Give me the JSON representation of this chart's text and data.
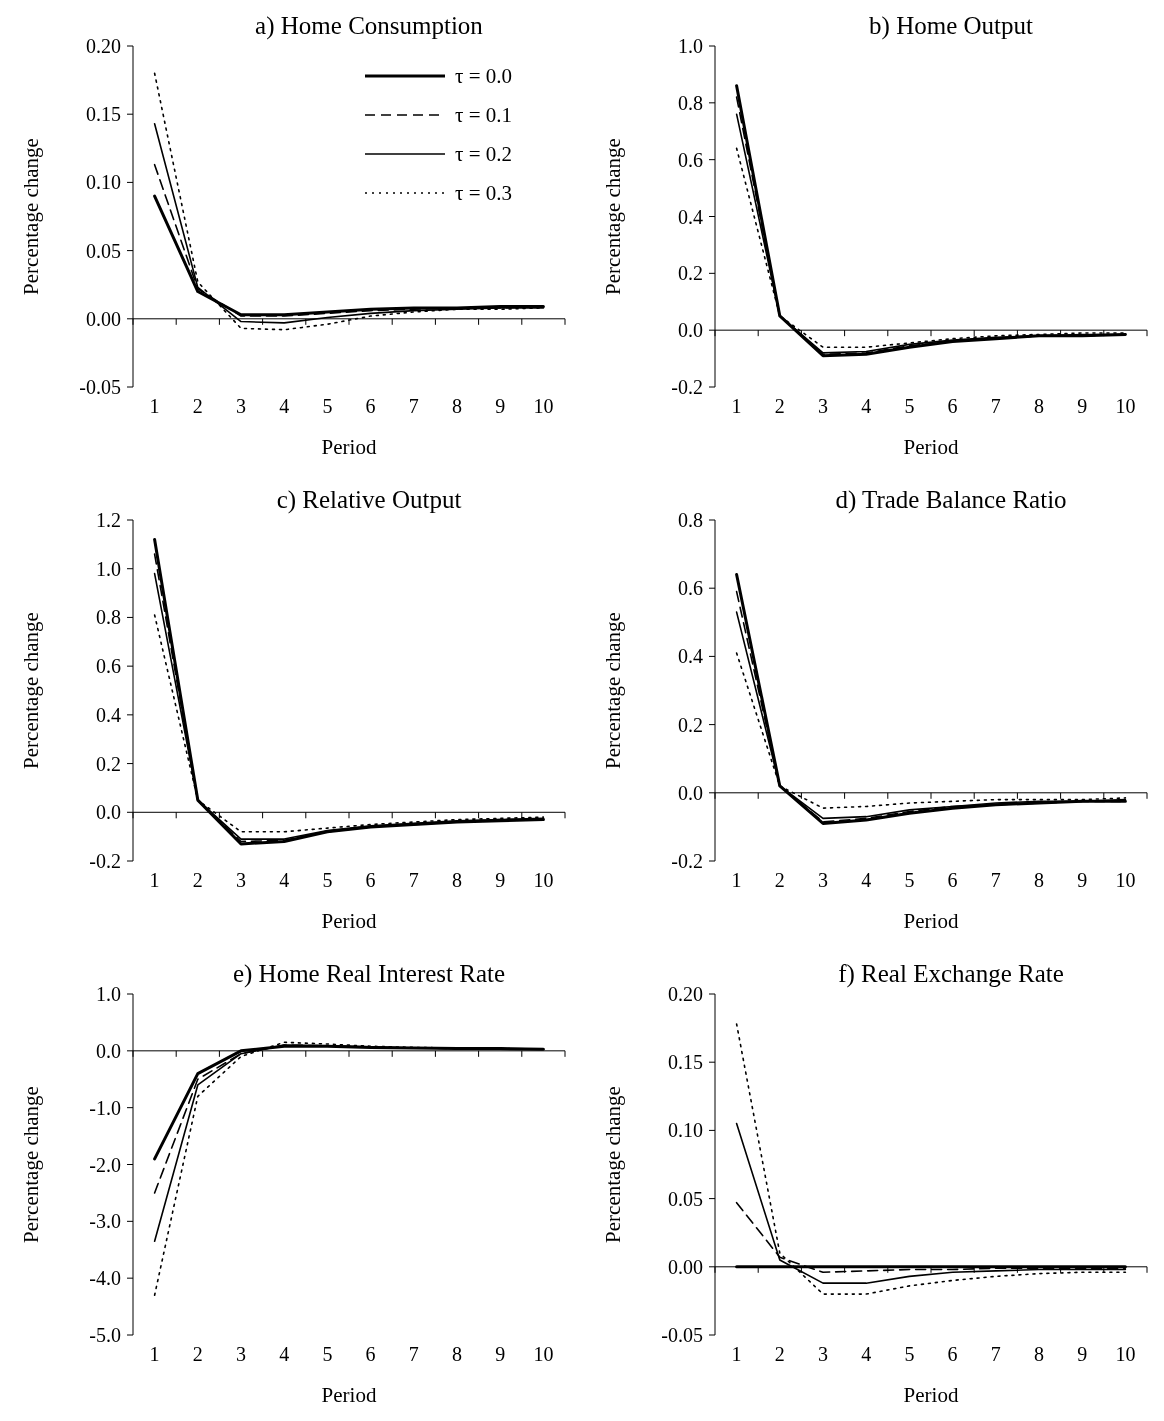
{
  "chart_data": [
    {
      "type": "line",
      "title": "a) Home Consumption",
      "xlabel": "Period",
      "ylabel": "Percentage change",
      "categories": [
        "1",
        "2",
        "3",
        "4",
        "5",
        "6",
        "7",
        "8",
        "9",
        "10"
      ],
      "ylim": [
        -0.05,
        0.2
      ],
      "yticks": [
        {
          "value": -0.05,
          "label": "-0.05"
        },
        {
          "value": 0,
          "label": "0.00"
        },
        {
          "value": 0.05,
          "label": "0.05"
        },
        {
          "value": 0.1,
          "label": "0.10"
        },
        {
          "value": 0.15,
          "label": "0.15"
        },
        {
          "value": 0.2,
          "label": "0.20"
        }
      ],
      "legend": "top right",
      "marker": "none",
      "series": [
        {
          "name": "τ = 0.0",
          "color": "#000000",
          "line_style": "solid",
          "values": [
            0.09,
            0.02,
            0.003,
            0.003,
            0.005,
            0.007,
            0.008,
            0.008,
            0.009,
            0.009
          ]
        },
        {
          "name": "τ = 0.1",
          "color": "#000000",
          "line_style": "dashed",
          "values": [
            0.113,
            0.022,
            0.002,
            0.002,
            0.004,
            0.006,
            0.007,
            0.008,
            0.008,
            0.009
          ]
        },
        {
          "name": "τ = 0.2",
          "color": "#000000",
          "line_style": "solid",
          "values": [
            0.143,
            0.023,
            -0.002,
            -0.003,
            0.001,
            0.004,
            0.006,
            0.007,
            0.008,
            0.008
          ]
        },
        {
          "name": "τ = 0.3",
          "color": "#000000",
          "line_style": "dotted",
          "values": [
            0.18,
            0.027,
            -0.007,
            -0.008,
            -0.004,
            0.002,
            0.005,
            0.007,
            0.007,
            0.008
          ]
        }
      ]
    },
    {
      "type": "line",
      "title": "b) Home Output",
      "xlabel": "Period",
      "ylabel": "Percentage change",
      "categories": [
        "1",
        "2",
        "3",
        "4",
        "5",
        "6",
        "7",
        "8",
        "9",
        "10"
      ],
      "ylim": [
        -0.2,
        1.0
      ],
      "yticks": [
        {
          "value": -0.2,
          "label": "-0.2"
        },
        {
          "value": 0,
          "label": "0.0"
        },
        {
          "value": 0.2,
          "label": "0.2"
        },
        {
          "value": 0.4,
          "label": "0.4"
        },
        {
          "value": 0.6,
          "label": "0.6"
        },
        {
          "value": 0.8,
          "label": "0.8"
        },
        {
          "value": 1.0,
          "label": "1.0"
        }
      ],
      "marker": "none",
      "series": [
        {
          "color": "#000000",
          "line_style": "solid",
          "values": [
            0.86,
            0.05,
            -0.09,
            -0.085,
            -0.06,
            -0.04,
            -0.03,
            -0.02,
            -0.02,
            -0.015
          ]
        },
        {
          "color": "#000000",
          "line_style": "dashed",
          "values": [
            0.82,
            0.05,
            -0.085,
            -0.08,
            -0.055,
            -0.04,
            -0.03,
            -0.02,
            -0.02,
            -0.015
          ]
        },
        {
          "color": "#000000",
          "line_style": "solid",
          "values": [
            0.76,
            0.05,
            -0.08,
            -0.075,
            -0.05,
            -0.035,
            -0.025,
            -0.02,
            -0.015,
            -0.015
          ]
        },
        {
          "color": "#000000",
          "line_style": "dotted",
          "values": [
            0.64,
            0.05,
            -0.06,
            -0.06,
            -0.045,
            -0.03,
            -0.02,
            -0.015,
            -0.01,
            -0.01
          ]
        }
      ]
    },
    {
      "type": "line",
      "title": "c) Relative Output",
      "xlabel": "Period",
      "ylabel": "Percentage change",
      "categories": [
        "1",
        "2",
        "3",
        "4",
        "5",
        "6",
        "7",
        "8",
        "9",
        "10"
      ],
      "ylim": [
        -0.2,
        1.2
      ],
      "yticks": [
        {
          "value": -0.2,
          "label": "-0.2"
        },
        {
          "value": 0,
          "label": "0.0"
        },
        {
          "value": 0.2,
          "label": "0.2"
        },
        {
          "value": 0.4,
          "label": "0.4"
        },
        {
          "value": 0.6,
          "label": "0.6"
        },
        {
          "value": 0.8,
          "label": "0.8"
        },
        {
          "value": 1.0,
          "label": "1.0"
        },
        {
          "value": 1.2,
          "label": "1.2"
        }
      ],
      "marker": "none",
      "series": [
        {
          "color": "#000000",
          "line_style": "solid",
          "values": [
            1.12,
            0.05,
            -0.13,
            -0.12,
            -0.08,
            -0.06,
            -0.05,
            -0.04,
            -0.035,
            -0.03
          ]
        },
        {
          "color": "#000000",
          "line_style": "dashed",
          "values": [
            1.06,
            0.05,
            -0.12,
            -0.115,
            -0.08,
            -0.06,
            -0.05,
            -0.04,
            -0.03,
            -0.03
          ]
        },
        {
          "color": "#000000",
          "line_style": "solid",
          "values": [
            0.98,
            0.05,
            -0.11,
            -0.11,
            -0.075,
            -0.055,
            -0.045,
            -0.035,
            -0.03,
            -0.025
          ]
        },
        {
          "color": "#000000",
          "line_style": "dotted",
          "values": [
            0.81,
            0.05,
            -0.08,
            -0.08,
            -0.065,
            -0.05,
            -0.04,
            -0.03,
            -0.025,
            -0.02
          ]
        }
      ]
    },
    {
      "type": "line",
      "title": "d) Trade Balance Ratio",
      "xlabel": "Period",
      "ylabel": "Percentage change",
      "categories": [
        "1",
        "2",
        "3",
        "4",
        "5",
        "6",
        "7",
        "8",
        "9",
        "10"
      ],
      "ylim": [
        -0.2,
        0.8
      ],
      "yticks": [
        {
          "value": -0.2,
          "label": "-0.2"
        },
        {
          "value": 0,
          "label": "0.0"
        },
        {
          "value": 0.2,
          "label": "0.2"
        },
        {
          "value": 0.4,
          "label": "0.4"
        },
        {
          "value": 0.6,
          "label": "0.6"
        },
        {
          "value": 0.8,
          "label": "0.8"
        }
      ],
      "marker": "none",
      "series": [
        {
          "color": "#000000",
          "line_style": "solid",
          "values": [
            0.64,
            0.02,
            -0.09,
            -0.08,
            -0.06,
            -0.045,
            -0.035,
            -0.03,
            -0.025,
            -0.025
          ]
        },
        {
          "color": "#000000",
          "line_style": "dashed",
          "values": [
            0.59,
            0.02,
            -0.085,
            -0.075,
            -0.055,
            -0.04,
            -0.035,
            -0.03,
            -0.025,
            -0.025
          ]
        },
        {
          "color": "#000000",
          "line_style": "solid",
          "values": [
            0.53,
            0.02,
            -0.075,
            -0.07,
            -0.05,
            -0.04,
            -0.03,
            -0.025,
            -0.025,
            -0.02
          ]
        },
        {
          "color": "#000000",
          "line_style": "dotted",
          "values": [
            0.41,
            0.02,
            -0.045,
            -0.04,
            -0.03,
            -0.025,
            -0.02,
            -0.02,
            -0.02,
            -0.015
          ]
        }
      ]
    },
    {
      "type": "line",
      "title": "e) Home Real Interest Rate",
      "xlabel": "Period",
      "ylabel": "Percentage change",
      "categories": [
        "1",
        "2",
        "3",
        "4",
        "5",
        "6",
        "7",
        "8",
        "9",
        "10"
      ],
      "ylim": [
        -5,
        1
      ],
      "yticks": [
        {
          "value": -5,
          "label": "-5.0"
        },
        {
          "value": -4,
          "label": "-4.0"
        },
        {
          "value": -3,
          "label": "-3.0"
        },
        {
          "value": -2,
          "label": "-2.0"
        },
        {
          "value": -1,
          "label": "-1.0"
        },
        {
          "value": 0,
          "label": "0.0"
        },
        {
          "value": 1,
          "label": "1.0"
        }
      ],
      "marker": "none",
      "series": [
        {
          "color": "#000000",
          "line_style": "solid",
          "values": [
            -1.9,
            -0.4,
            0.0,
            0.08,
            0.08,
            0.06,
            0.05,
            0.04,
            0.04,
            0.03
          ]
        },
        {
          "color": "#000000",
          "line_style": "dashed",
          "values": [
            -2.5,
            -0.5,
            -0.05,
            0.1,
            0.09,
            0.06,
            0.05,
            0.04,
            0.04,
            0.03
          ]
        },
        {
          "color": "#000000",
          "line_style": "solid",
          "values": [
            -3.35,
            -0.6,
            -0.05,
            0.1,
            0.09,
            0.07,
            0.05,
            0.04,
            0.04,
            0.03
          ]
        },
        {
          "color": "#000000",
          "line_style": "dotted",
          "values": [
            -4.3,
            -0.8,
            -0.1,
            0.15,
            0.12,
            0.08,
            0.06,
            0.05,
            0.04,
            0.03
          ]
        }
      ]
    },
    {
      "type": "line",
      "title": "f) Real Exchange Rate",
      "xlabel": "Period",
      "ylabel": "Percentage change",
      "categories": [
        "1",
        "2",
        "3",
        "4",
        "5",
        "6",
        "7",
        "8",
        "9",
        "10"
      ],
      "ylim": [
        -0.05,
        0.2
      ],
      "yticks": [
        {
          "value": -0.05,
          "label": "-0.05"
        },
        {
          "value": 0,
          "label": "0.00"
        },
        {
          "value": 0.05,
          "label": "0.05"
        },
        {
          "value": 0.1,
          "label": "0.10"
        },
        {
          "value": 0.15,
          "label": "0.15"
        },
        {
          "value": 0.2,
          "label": "0.20"
        }
      ],
      "marker": "none",
      "series": [
        {
          "color": "#000000",
          "line_style": "solid",
          "values": [
            0,
            0,
            0,
            0,
            0,
            0,
            0,
            0,
            0,
            0
          ]
        },
        {
          "color": "#000000",
          "line_style": "dashed",
          "values": [
            0.047,
            0.007,
            -0.004,
            -0.003,
            -0.002,
            -0.002,
            -0.001,
            -0.001,
            -0.001,
            -0.001
          ]
        },
        {
          "color": "#000000",
          "line_style": "solid",
          "values": [
            0.105,
            0.005,
            -0.012,
            -0.012,
            -0.007,
            -0.004,
            -0.003,
            -0.002,
            -0.002,
            -0.002
          ]
        },
        {
          "color": "#000000",
          "line_style": "dotted",
          "values": [
            0.178,
            0.01,
            -0.02,
            -0.02,
            -0.014,
            -0.01,
            -0.007,
            -0.005,
            -0.004,
            -0.004
          ]
        }
      ]
    }
  ]
}
